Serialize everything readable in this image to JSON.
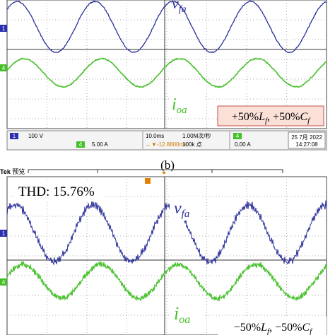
{
  "top": {
    "ch1_marker": "1",
    "ch4_marker": "4",
    "voltage": {
      "main": "v",
      "sub": "fa"
    },
    "current": {
      "main": "i",
      "sub": "oa"
    },
    "condition": [
      "+50%",
      "L",
      "f",
      ", +50%",
      "C",
      "f"
    ],
    "status": {
      "ch1": "1",
      "ch1_scale": "100 V",
      "ch4": "4",
      "ch4_scale": "5.00 A",
      "timebase": "10.0ms",
      "delay": "←▼-12.8800ms",
      "sample_rate": "1.00M次/秒",
      "record": "100k 点",
      "trigger_ch": "4",
      "trigger_level": "0.00 A",
      "date": "25 7月 2022",
      "time": "14:27:08"
    }
  },
  "caption": "(b)",
  "bottom": {
    "brand": "Tek",
    "mode": "预览",
    "ch1_marker": "1",
    "ch4_marker": "4",
    "thd": "THD: 15.76%",
    "voltage": {
      "main": "v",
      "sub": "fa"
    },
    "current": {
      "main": "i",
      "sub": "oa"
    },
    "condition": [
      "−50%",
      "L",
      "f",
      ", −50%",
      "C",
      "f"
    ]
  }
}
